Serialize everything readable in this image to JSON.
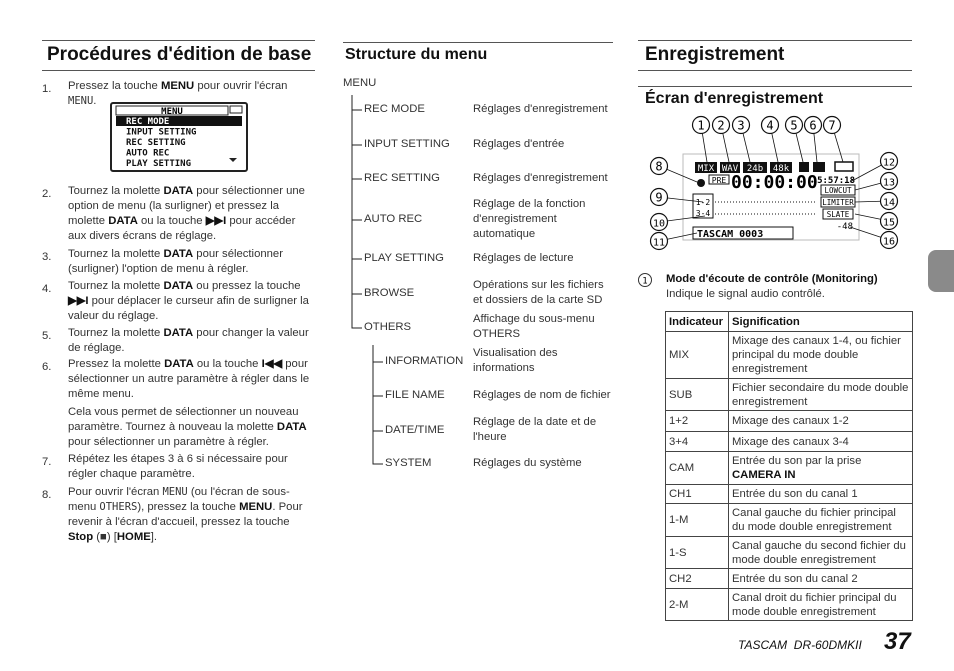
{
  "procedures": {
    "title": "Procédures d'édition de base",
    "steps": [
      {
        "number": "1.",
        "paragraphs": [
          [
            "Pressez la touche ",
            "MENU",
            " pour ouvrir l'écran ",
            "MENU",
            "."
          ]
        ]
      },
      {
        "number": "2.",
        "paragraphs": [
          [
            "Tournez la molette ",
            "DATA",
            " pour sélectionner une option de menu (la surligner) et pressez la molette ",
            "DATA",
            " ou la touche ",
            "▶▶I",
            " pour accéder aux divers écrans de réglage."
          ]
        ]
      },
      {
        "number": "3.",
        "paragraphs": [
          [
            "Tournez la molette ",
            "DATA",
            " pour sélectionner (surligner) l'option de menu à régler."
          ]
        ]
      },
      {
        "number": "4.",
        "paragraphs": [
          [
            "Tournez la molette ",
            "DATA",
            " ou pressez la touche ",
            "▶▶I",
            " pour déplacer le curseur afin de surligner la valeur du réglage."
          ]
        ]
      },
      {
        "number": "5.",
        "paragraphs": [
          [
            "Tournez la molette ",
            "DATA",
            " pour changer la valeur de réglage."
          ]
        ]
      },
      {
        "number": "6.",
        "paragraphs": [
          [
            "Pressez la molette ",
            "DATA",
            " ou la touche ",
            "I◀◀",
            " pour sélectionner un autre paramètre à régler dans le même menu."
          ],
          [
            "Cela vous permet de sélectionner un nouveau paramètre. Tournez à nouveau la molette ",
            "DATA",
            " pour sélectionner un paramètre à régler."
          ]
        ]
      },
      {
        "number": "7.",
        "paragraphs": [
          [
            "Répétez les étapes 3 à 6 si nécessaire pour régler chaque paramètre."
          ]
        ]
      },
      {
        "number": "8.",
        "paragraphs": [
          [
            "Pour ouvrir l'écran ",
            "MENU",
            " (ou l'écran de sous-menu ",
            "OTHERS",
            "), pressez la touche ",
            "MENU",
            ". Pour revenir à l'écran d'accueil, pressez la touche ",
            "Stop",
            " (",
            "■",
            ") [",
            "HOME",
            "]."
          ]
        ]
      }
    ],
    "menu_screen": {
      "title": "MENU",
      "items": [
        "REC MODE",
        "INPUT SETTING",
        "REC SETTING",
        "AUTO REC",
        "PLAY SETTING"
      ]
    }
  },
  "menu_structure": {
    "title": "Structure du menu",
    "root": "MENU",
    "items": [
      {
        "label": "REC MODE",
        "description": "Réglages d'enregistrement"
      },
      {
        "label": "INPUT SETTING",
        "description": "Réglages d'entrée"
      },
      {
        "label": "REC SETTING",
        "description": "Réglages d'enregistrement"
      },
      {
        "label": "AUTO REC",
        "description": "Réglage de la fonction d'enregistrement automatique"
      },
      {
        "label": "PLAY SETTING",
        "description": "Réglages de lecture"
      },
      {
        "label": "BROWSE",
        "description": "Opérations sur les fichiers et dossiers de la carte SD"
      },
      {
        "label": "OTHERS",
        "description": "Affichage du sous-menu OTHERS",
        "children": [
          {
            "label": "INFORMATION",
            "description": "Visualisation des informations"
          },
          {
            "label": "FILE NAME",
            "description": "Réglages de nom de fichier"
          },
          {
            "label": "DATE/TIME",
            "description": "Réglage de la date et de l'heure"
          },
          {
            "label": "SYSTEM",
            "description": "Réglages du système"
          }
        ]
      }
    ]
  },
  "recording": {
    "title": "Enregistrement",
    "subtitle": "Écran d'enregistrement",
    "callouts": [
      "1",
      "2",
      "3",
      "4",
      "5",
      "6",
      "7",
      "8",
      "9",
      "10",
      "11",
      "12",
      "13",
      "14",
      "15",
      "16"
    ],
    "lcd": {
      "mode": "MIX",
      "format": "WAV",
      "bits": "24b",
      "rate": "48k",
      "pre": "PRE",
      "counter": "00:00:00",
      "remaining": "5:57:18",
      "lowcut": "LOWCUT",
      "limiter": "LIMITER",
      "slate": "SLATE",
      "level": "-48",
      "track_a": "1-2",
      "track_b": "3-4",
      "file": "TASCAM  0003"
    },
    "item": {
      "number": "1",
      "title": "Mode d'écoute de contrôle (Monitoring)",
      "description": "Indique le signal audio contrôlé."
    },
    "table": {
      "header": [
        "Indicateur",
        "Signification"
      ],
      "rows": [
        [
          "MIX",
          "Mixage des canaux 1-4, ou fichier principal du mode double enregistrement"
        ],
        [
          "SUB",
          "Fichier secondaire du mode double enregistrement"
        ],
        [
          "1+2",
          "Mixage des canaux 1-2"
        ],
        [
          "3+4",
          "Mixage des canaux 3-4"
        ],
        [
          "CAM",
          [
            "Entrée du son par la prise",
            "CAMERA IN"
          ]
        ],
        [
          "CH1",
          "Entrée du son du canal 1"
        ],
        [
          "1-M",
          "Canal gauche du fichier principal du mode double enregistrement"
        ],
        [
          "1-S",
          "Canal gauche du second fichier du mode double enregistrement"
        ],
        [
          "CH2",
          "Entrée du son du canal 2"
        ],
        [
          "2-M",
          "Canal droit du fichier principal du mode double enregistrement"
        ]
      ]
    }
  },
  "footer": {
    "model": "TASCAM  DR-60DMKII",
    "page": "37"
  }
}
